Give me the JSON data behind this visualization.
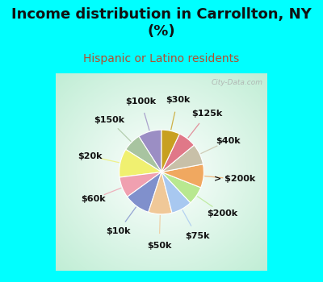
{
  "title": "Income distribution in Carrollton, NY\n(%)",
  "subtitle": "Hispanic or Latino residents",
  "bg_cyan": "#00ffff",
  "bg_chart": "#d8f0e8",
  "labels": [
    "$100k",
    "$150k",
    "$20k",
    "$60k",
    "$10k",
    "$50k",
    "$75k",
    "$200k",
    "> $200k",
    "$40k",
    "$125k",
    "$30k"
  ],
  "values": [
    9,
    7,
    11,
    8,
    10,
    9,
    8,
    7,
    9,
    8,
    7,
    7
  ],
  "colors": [
    "#9b8ec4",
    "#a8c4a0",
    "#f0f070",
    "#f0a0b0",
    "#8090cc",
    "#f0c898",
    "#a8c8f0",
    "#b8e890",
    "#f0a860",
    "#c8c0a8",
    "#e07888",
    "#c8a020"
  ],
  "watermark": "City-Data.com",
  "startangle": 90,
  "label_fontsize": 8,
  "title_fontsize": 13,
  "subtitle_fontsize": 10,
  "title_color": "#111111",
  "subtitle_color": "#b05030"
}
